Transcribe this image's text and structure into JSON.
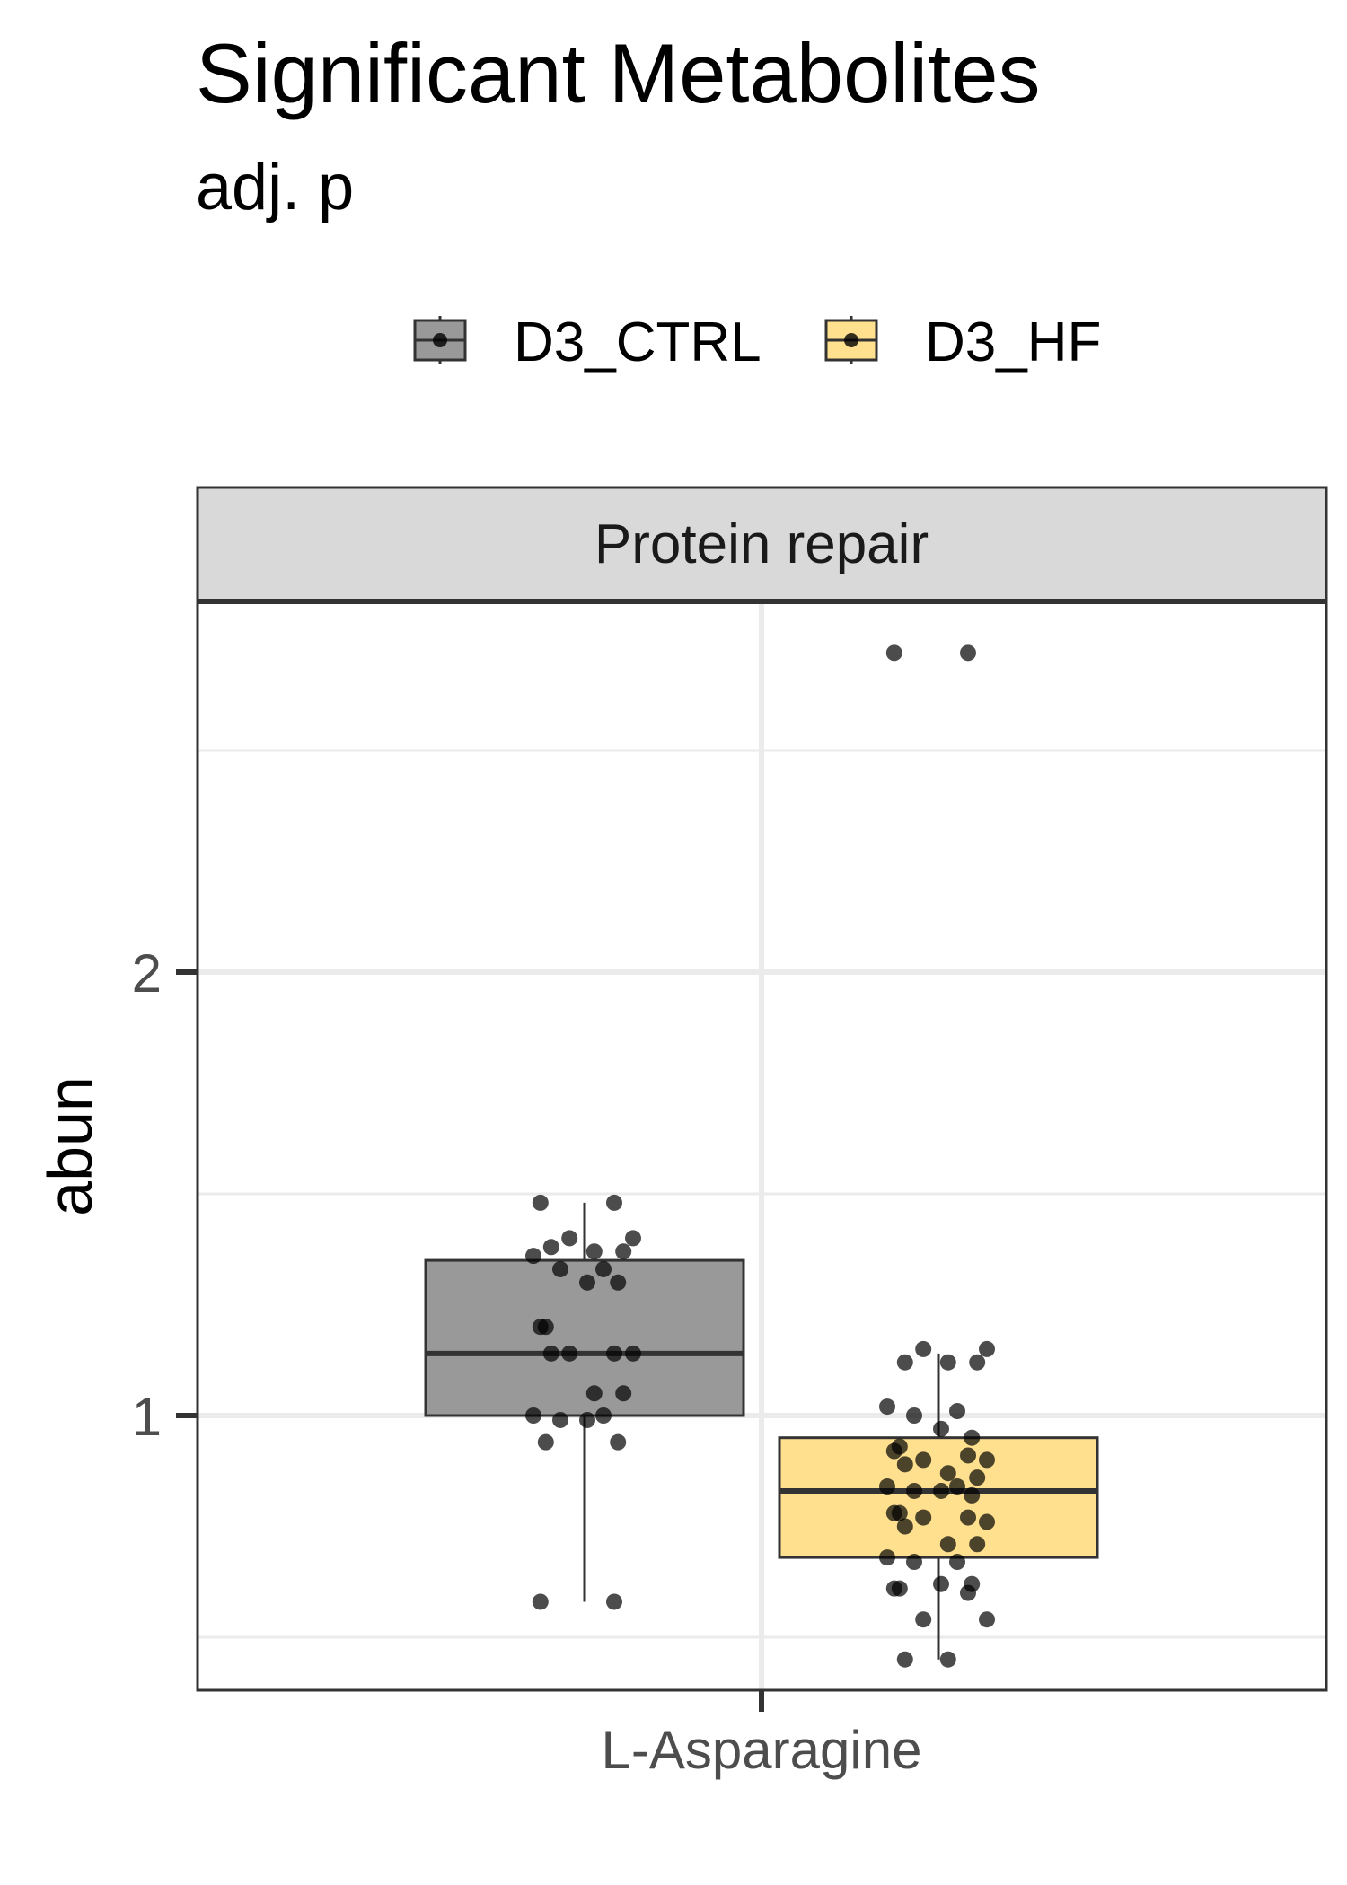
{
  "chart_data": {
    "type": "box",
    "title": "Significant Metabolites",
    "subtitle": "adj. p",
    "facet": "Protein repair",
    "xlabel": "",
    "ylabel": "abun",
    "categories": [
      "L-Asparagine"
    ],
    "ylim": [
      0.45,
      2.9
    ],
    "yticks": [
      1,
      2
    ],
    "grid": true,
    "legend_position": "top",
    "series": [
      {
        "name": "D3_CTRL",
        "color": "#999999",
        "box": {
          "min": 0.58,
          "q1": 1.0,
          "median": 1.14,
          "q3": 1.35,
          "max": 1.48
        },
        "points": [
          1.48,
          1.48,
          1.4,
          1.4,
          1.38,
          1.37,
          1.37,
          1.36,
          1.33,
          1.33,
          1.3,
          1.3,
          1.2,
          1.2,
          1.14,
          1.14,
          1.14,
          1.14,
          1.05,
          1.05,
          1.0,
          1.0,
          0.99,
          0.99,
          0.94,
          0.94,
          0.58,
          0.58
        ]
      },
      {
        "name": "D3_HF",
        "color": "#FFE08F",
        "box": {
          "min": 0.45,
          "q1": 0.68,
          "median": 0.83,
          "q3": 0.95,
          "max": 1.14
        },
        "points": [
          2.72,
          2.72,
          1.15,
          1.15,
          1.12,
          1.12,
          1.12,
          1.02,
          1.01,
          1.0,
          0.97,
          0.95,
          0.93,
          0.92,
          0.91,
          0.9,
          0.9,
          0.89,
          0.87,
          0.86,
          0.84,
          0.84,
          0.83,
          0.83,
          0.82,
          0.78,
          0.78,
          0.77,
          0.77,
          0.76,
          0.75,
          0.71,
          0.71,
          0.68,
          0.67,
          0.67,
          0.62,
          0.62,
          0.61,
          0.61,
          0.6,
          0.54,
          0.54,
          0.45,
          0.45
        ]
      }
    ]
  }
}
